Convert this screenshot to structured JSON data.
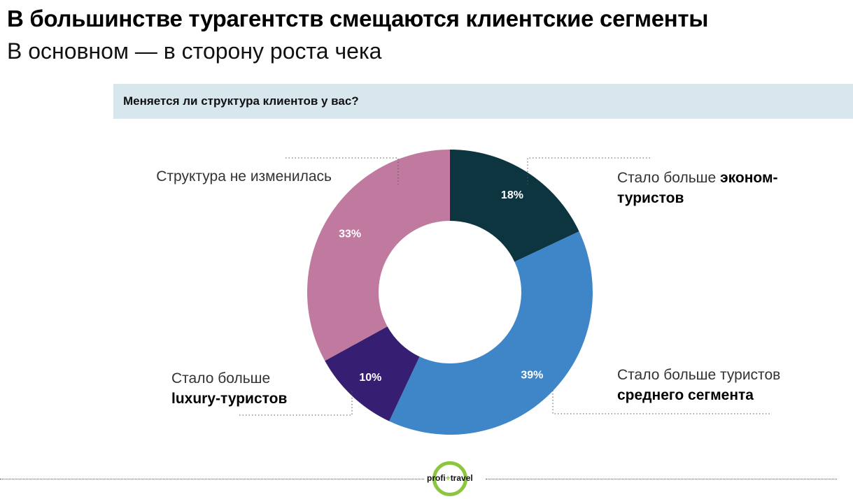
{
  "header": {
    "title": "В большинстве турагентств смещаются клиентские сегменты",
    "subtitle": "В основном — в сторону роста чека"
  },
  "question": "Меняется ли структура клиентов у вас?",
  "chart_data": {
    "type": "pie",
    "donut": true,
    "title": "Меняется ли структура клиентов у вас?",
    "slices": [
      {
        "label": "Стало больше эконом-туристов",
        "value": 18,
        "value_label": "18%",
        "color": "#0d3540"
      },
      {
        "label": "Стало больше туристов среднего сегмента",
        "value": 39,
        "value_label": "39%",
        "color": "#3f86c8"
      },
      {
        "label": "Стало больше luxury-туристов",
        "value": 10,
        "value_label": "10%",
        "color": "#361e73"
      },
      {
        "label": "Структура не изменилась",
        "value": 33,
        "value_label": "33%",
        "color": "#c07aa0"
      }
    ]
  },
  "labels": {
    "econom_line1_normal": "Стало больше",
    "econom_line1_bold": "эконом-",
    "econom_line2_bold": "туристов",
    "middle_line1": "Стало больше туристов",
    "middle_line2_bold": "среднего сегмента",
    "luxury_line1": "Стало больше",
    "luxury_line2_bold": "luxury-туристов",
    "unchanged": "Структура не изменилась"
  },
  "footer": {
    "logo_left": "profi",
    "logo_sep": "+",
    "logo_right": "travel",
    "logo_accent": "#8cc63f"
  }
}
